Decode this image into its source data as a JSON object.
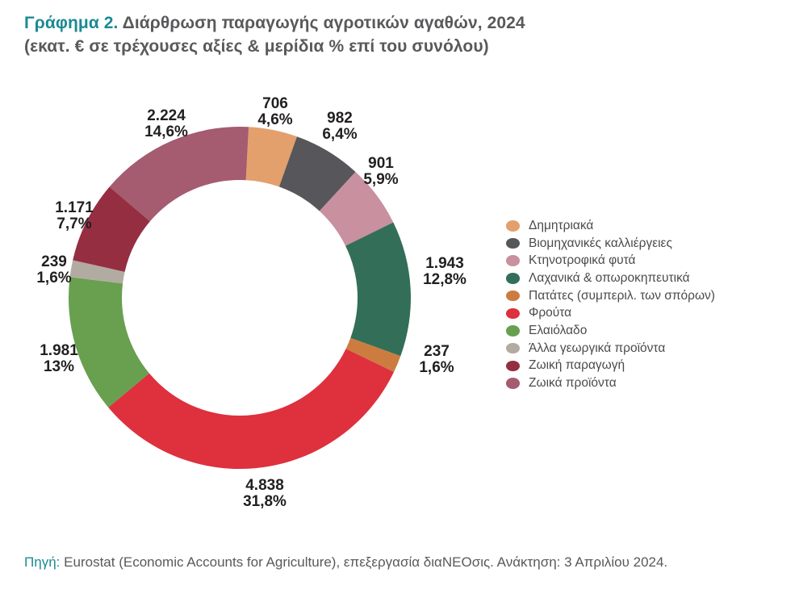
{
  "title": {
    "prefix": "Γράφημα 2.",
    "main": "Διάρθρωση παραγωγής αγροτικών αγαθών, 2024",
    "subtitle": "(εκατ. € σε τρέχουσες αξίες & μερίδια % επί του συνόλου)"
  },
  "source": {
    "label": "Πηγή:",
    "text": "Eurostat (Economic Accounts for Agriculture), επεξεργασία διαΝΕΟσις. Ανάκτηση: 3 Απριλίου 2024."
  },
  "colors": {
    "accent_teal": "#1B8A94",
    "title_gray": "#58595B",
    "label_dark": "#221F20",
    "legend_text": "#4B4B4D"
  },
  "chart_data": {
    "type": "pie",
    "donut": true,
    "units": "εκατ. € σε τρέχουσες αξίες",
    "title": "Διάρθρωση παραγωγής αγροτικών αγαθών, 2024",
    "legend_position": "right",
    "start_angle_deg": 3,
    "slices": [
      {
        "name": "Δημητριακά",
        "value": 706,
        "value_label": "706",
        "pct": 4.6,
        "pct_label": "4,6%",
        "color": "#E3A06C"
      },
      {
        "name": "Βιομηχανικές καλλιέργειες",
        "value": 982,
        "value_label": "982",
        "pct": 6.4,
        "pct_label": "6,4%",
        "color": "#57565A"
      },
      {
        "name": "Κτηνοτροφικά φυτά",
        "value": 901,
        "value_label": "901",
        "pct": 5.9,
        "pct_label": "5,9%",
        "color": "#C9909F"
      },
      {
        "name": "Λαχανικά & οπωροκηπευτικά",
        "value": 1943,
        "value_label": "1.943",
        "pct": 12.8,
        "pct_label": "12,8%",
        "color": "#336F58"
      },
      {
        "name": "Πατάτες (συμπεριλ. των σπόρων)",
        "value": 237,
        "value_label": "237",
        "pct": 1.6,
        "pct_label": "1,6%",
        "color": "#CC7C3E"
      },
      {
        "name": "Φρούτα",
        "value": 4838,
        "value_label": "4.838",
        "pct": 31.8,
        "pct_label": "31,8%",
        "color": "#DE303D"
      },
      {
        "name": "Ελαιόλαδο",
        "value": 1981,
        "value_label": "1.981",
        "pct": 13,
        "pct_label": "13%",
        "color": "#68A04F"
      },
      {
        "name": "Άλλα γεωργικά προϊόντα",
        "value": 239,
        "value_label": "239",
        "pct": 1.6,
        "pct_label": "1,6%",
        "color": "#B2ABA1"
      },
      {
        "name": "Ζωική παραγωγή",
        "value": 1171,
        "value_label": "1.171",
        "pct": 7.7,
        "pct_label": "7,7%",
        "color": "#952E41"
      },
      {
        "name": "Ζωικά προϊόντα",
        "value": 2224,
        "value_label": "2.224",
        "pct": 14.6,
        "pct_label": "14,6%",
        "color": "#A55B70"
      }
    ]
  }
}
